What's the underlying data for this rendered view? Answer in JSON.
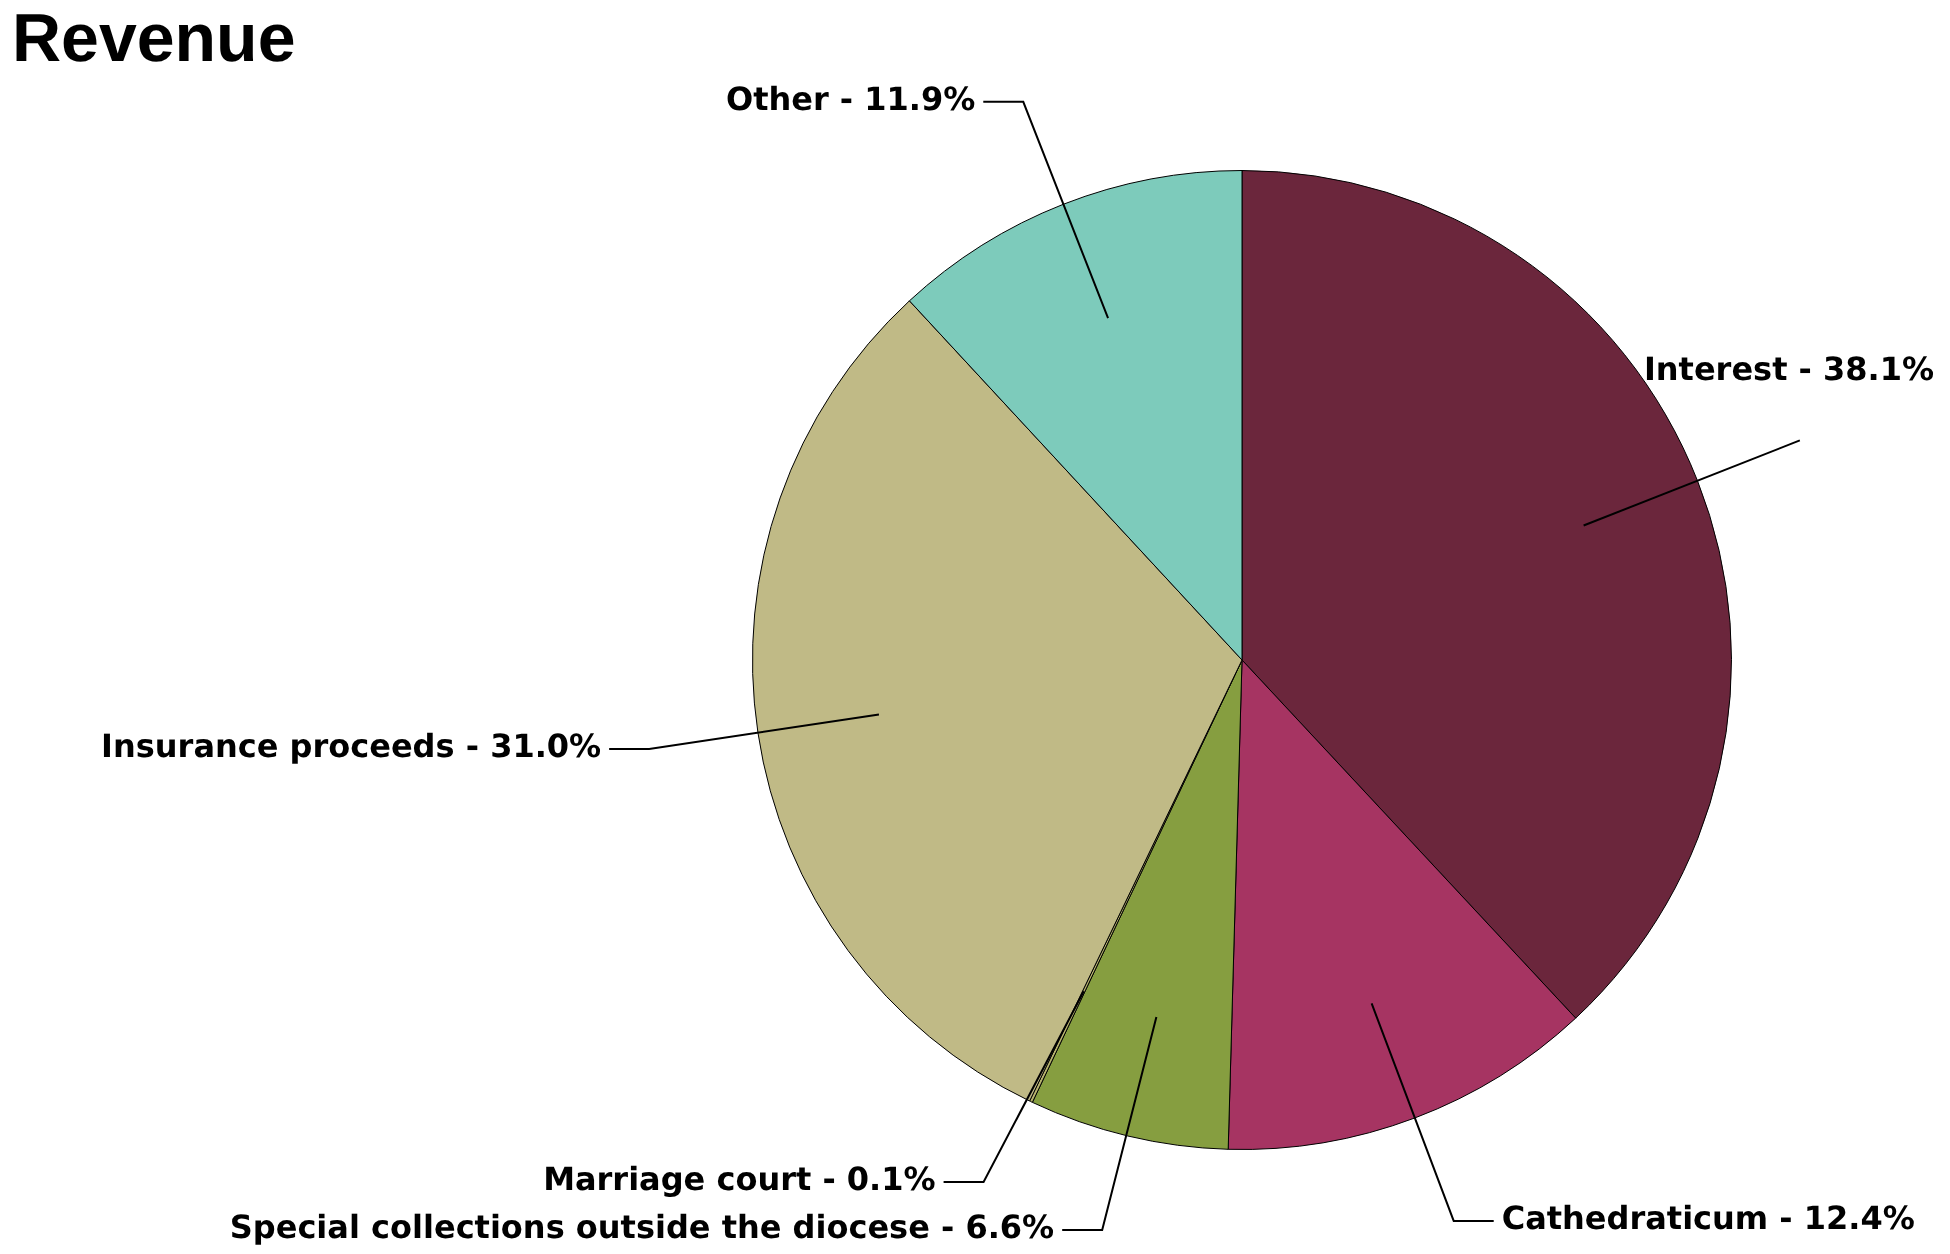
{
  "chart_data": {
    "type": "pie",
    "title": "Revenue",
    "categories": [
      "Interest",
      "Cathedraticum",
      "Special collections outside the diocese",
      "Marriage court",
      "Insurance proceeds",
      "Other"
    ],
    "values": [
      38.1,
      12.4,
      6.6,
      0.1,
      31.0,
      11.9
    ],
    "colors": [
      "#6b263c",
      "#a63462",
      "#869e40",
      "#b7b36e",
      "#c0ba86",
      "#7dcbbb"
    ],
    "value_labels": [
      "38.1%",
      "12.4%",
      "6.6%",
      "0.1%",
      "31.0%",
      "11.9%"
    ]
  }
}
